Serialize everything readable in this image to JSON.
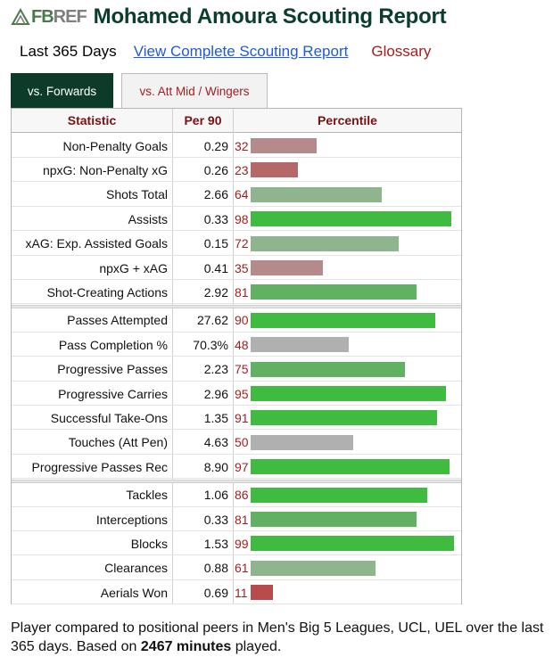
{
  "logo": {
    "part1": "FB",
    "part2": "REF"
  },
  "title": "Mohamed Amoura Scouting Report",
  "subnav": {
    "period": "Last 365 Days",
    "link": "View Complete Scouting Report",
    "glossary": "Glossary"
  },
  "tabs": [
    {
      "label": "vs. Forwards",
      "active": true
    },
    {
      "label": "vs. Att Mid / Wingers",
      "active": false
    }
  ],
  "table": {
    "headers": {
      "stat": "Statistic",
      "per90": "Per 90",
      "percentile": "Percentile"
    },
    "groups": [
      [
        {
          "stat": "Non-Penalty Goals",
          "per90": "0.29",
          "pct": 32
        },
        {
          "stat": "npxG: Non-Penalty xG",
          "per90": "0.26",
          "pct": 23
        },
        {
          "stat": "Shots Total",
          "per90": "2.66",
          "pct": 64
        },
        {
          "stat": "Assists",
          "per90": "0.33",
          "pct": 98
        },
        {
          "stat": "xAG: Exp. Assisted Goals",
          "per90": "0.15",
          "pct": 72
        },
        {
          "stat": "npxG + xAG",
          "per90": "0.41",
          "pct": 35
        },
        {
          "stat": "Shot-Creating Actions",
          "per90": "2.92",
          "pct": 81
        }
      ],
      [
        {
          "stat": "Passes Attempted",
          "per90": "27.62",
          "pct": 90
        },
        {
          "stat": "Pass Completion %",
          "per90": "70.3%",
          "pct": 48
        },
        {
          "stat": "Progressive Passes",
          "per90": "2.23",
          "pct": 75
        },
        {
          "stat": "Progressive Carries",
          "per90": "2.96",
          "pct": 95
        },
        {
          "stat": "Successful Take-Ons",
          "per90": "1.35",
          "pct": 91
        },
        {
          "stat": "Touches (Att Pen)",
          "per90": "4.63",
          "pct": 50
        },
        {
          "stat": "Progressive Passes Rec",
          "per90": "8.90",
          "pct": 97
        }
      ],
      [
        {
          "stat": "Tackles",
          "per90": "1.06",
          "pct": 86
        },
        {
          "stat": "Interceptions",
          "per90": "0.33",
          "pct": 81
        },
        {
          "stat": "Blocks",
          "per90": "1.53",
          "pct": 99
        },
        {
          "stat": "Clearances",
          "per90": "0.88",
          "pct": 61
        },
        {
          "stat": "Aerials Won",
          "per90": "0.69",
          "pct": 11
        }
      ]
    ]
  },
  "footnote": {
    "text1": "Player compared to positional peers in Men's Big 5 Leagues, UCL, UEL over the last 365 days. Based on ",
    "minutes": "2467 minutes",
    "text2": " played."
  },
  "colors": {
    "high": "#3fbb3f",
    "mid_high": "#62b062",
    "mid_low": "#8fb58f",
    "neutral": "#b0b0b0",
    "low_mid": "#b58a8a",
    "low": "#b56868",
    "very_low": "#b84c4c"
  }
}
